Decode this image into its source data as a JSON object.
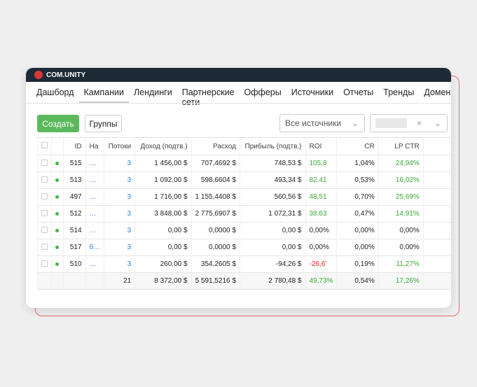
{
  "header": {
    "logo": "COM.UNITY"
  },
  "nav": {
    "items": [
      "Дашборд",
      "Кампании",
      "Лендинги",
      "Партнерские сети",
      "Офферы",
      "Источники",
      "Отчеты",
      "Тренды",
      "Домены"
    ],
    "active": 1
  },
  "toolbar": {
    "create": "Создать",
    "groups": "Группы",
    "source_filter": "Все источники"
  },
  "table": {
    "headers": [
      "ID",
      "На",
      "Потоки",
      "Доход (подтв.)",
      "Расход",
      "Прибыль (подтв.)",
      "ROI",
      "CR",
      "LP CTR"
    ],
    "rows": [
      [
        "515",
        "…",
        "3",
        "1 456,00 $",
        "707,4692 $",
        "748,53 $",
        "105,8",
        "1,04%",
        "24,94%"
      ],
      [
        "513",
        "…",
        "3",
        "1 092,00 $",
        "598,6604 $",
        "493,34 $",
        "82,41",
        "0,53%",
        "16,02%"
      ],
      [
        "497",
        "…",
        "3",
        "1 716,00 $",
        "1 155,4408 $",
        "560,56 $",
        "48,51",
        "0,70%",
        "25,69%"
      ],
      [
        "512",
        "…",
        "3",
        "3 848,00 $",
        "2 775,6907 $",
        "1 072,31 $",
        "38,63",
        "0,47%",
        "14,91%"
      ],
      [
        "514",
        "…",
        "3",
        "0,00 $",
        "0,0000 $",
        "0,00 $",
        "0,00%",
        "0,00%",
        "0,00%"
      ],
      [
        "517",
        "б…",
        "3",
        "0,00 $",
        "0,0000 $",
        "0,00 $",
        "0,00%",
        "0,00%",
        "0,00%"
      ],
      [
        "510",
        "…",
        "3",
        "260,00 $",
        "354,2605 $",
        "-94,26 $",
        "-26,6'",
        "0,19%",
        "11,27%"
      ]
    ],
    "totals": [
      "21",
      "8 372,00 $",
      "5 591,5216 $",
      "2 780,48 $",
      "49,73%",
      "0,54%",
      "17,26%"
    ]
  }
}
